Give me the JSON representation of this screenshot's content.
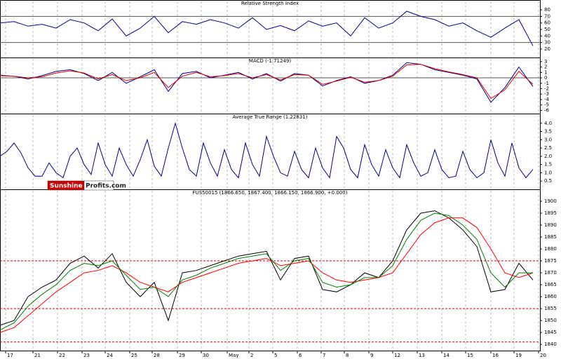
{
  "chart_data": [
    {
      "type": "line",
      "title": "Relative Strength Index",
      "x": [
        0,
        2,
        4,
        6,
        8,
        10,
        12,
        14,
        16,
        18,
        20,
        22,
        24,
        26,
        28,
        30,
        32,
        34,
        36,
        38,
        40,
        42,
        44,
        46,
        48,
        50,
        52,
        54,
        56,
        58,
        60,
        62,
        64,
        66,
        68,
        70,
        72,
        74,
        76
      ],
      "series": [
        {
          "color": "#00008b",
          "values": [
            60,
            62,
            55,
            58,
            52,
            65,
            60,
            48,
            66,
            40,
            52,
            70,
            45,
            62,
            58,
            65,
            60,
            52,
            68,
            50,
            56,
            48,
            63,
            55,
            60,
            40,
            68,
            52,
            60,
            78,
            70,
            65,
            55,
            60,
            48,
            38,
            52,
            65,
            25
          ]
        }
      ],
      "ylim": [
        7,
        93
      ],
      "yticks": [
        20,
        30,
        40,
        50,
        60,
        70,
        80
      ],
      "reference_lines": [
        70,
        30
      ],
      "reference_color": "#555555",
      "reference_dashed": false
    },
    {
      "type": "line",
      "title": "MACD (-1.71249)",
      "x": [
        0,
        2,
        4,
        6,
        8,
        10,
        12,
        14,
        16,
        18,
        20,
        22,
        24,
        26,
        28,
        30,
        32,
        34,
        36,
        38,
        40,
        42,
        44,
        46,
        48,
        50,
        52,
        54,
        56,
        58,
        60,
        62,
        64,
        66,
        68,
        70,
        72,
        74,
        76
      ],
      "series": [
        {
          "color": "#00008b",
          "values": [
            0.5,
            0.3,
            -0.2,
            0.4,
            1.2,
            1.5,
            0.8,
            -0.5,
            1,
            -1,
            0.2,
            1.5,
            -2.5,
            0.8,
            1.2,
            0,
            0.5,
            1,
            -0.2,
            0.8,
            -0.6,
            0.8,
            0.5,
            -1.5,
            -0.5,
            0.2,
            -1,
            -0.5,
            0.5,
            2.8,
            2.5,
            1.5,
            1,
            0.5,
            -0.2,
            -4.5,
            -1.8,
            2,
            -1.6
          ]
        },
        {
          "color": "#dd0000",
          "values": [
            0.4,
            0.3,
            0,
            0.2,
            0.9,
            1.3,
            0.9,
            -0.2,
            0.6,
            -0.5,
            0,
            1,
            -1.8,
            0.3,
            1,
            0.2,
            0.4,
            0.8,
            0,
            0.6,
            -0.4,
            0.6,
            0.5,
            -1.2,
            -0.6,
            0.1,
            -0.8,
            -0.5,
            0.3,
            2.4,
            2.5,
            1.7,
            1.1,
            0.6,
            0,
            -3.8,
            -2.2,
            1.2,
            -1.2
          ]
        }
      ],
      "ylim": [
        -6.6,
        3.5
      ],
      "yticks": [
        3,
        2,
        1,
        0,
        -1,
        -2,
        -3,
        -4,
        -5,
        -6
      ],
      "reference_lines": [
        0
      ],
      "reference_color": "#555555",
      "reference_dashed": false
    },
    {
      "type": "line",
      "title": "Average True Range (1.22831)",
      "x": [
        0,
        1,
        2,
        3,
        4,
        5,
        6,
        7,
        8,
        9,
        10,
        11,
        12,
        13,
        14,
        15,
        16,
        17,
        18,
        19,
        20,
        21,
        22,
        23,
        24,
        25,
        26,
        27,
        28,
        29,
        30,
        31,
        32,
        33,
        34,
        35,
        36,
        37,
        38,
        39,
        40,
        41,
        42,
        43,
        44,
        45,
        46,
        47,
        48,
        49,
        50,
        51,
        52,
        53,
        54,
        55,
        56,
        57,
        58,
        59,
        60,
        61,
        62,
        63,
        64,
        65,
        66,
        67,
        68,
        69,
        70,
        71,
        72,
        73,
        74,
        75,
        76
      ],
      "series": [
        {
          "color": "#00008b",
          "values": [
            2.0,
            2.3,
            2.8,
            2.2,
            1.3,
            0.8,
            0.8,
            1.6,
            1.0,
            0.7,
            2.0,
            2.5,
            1.5,
            0.9,
            2.8,
            1.5,
            0.8,
            2.5,
            1.5,
            0.8,
            1.8,
            3.0,
            1.4,
            0.8,
            2.5,
            4.0,
            2.5,
            1.2,
            0.8,
            2.8,
            1.6,
            0.8,
            2.4,
            1.2,
            0.7,
            2.8,
            1.5,
            0.8,
            3.2,
            2.0,
            1.0,
            0.8,
            2.3,
            1.2,
            0.7,
            2.5,
            1.3,
            0.7,
            3.2,
            2.5,
            1.2,
            0.7,
            2.7,
            1.5,
            0.8,
            2.4,
            1.3,
            0.7,
            2.7,
            1.6,
            0.8,
            1.0,
            2.4,
            1.2,
            0.7,
            0.8,
            2.3,
            1.2,
            0.7,
            1.0,
            3.0,
            1.6,
            0.8,
            2.8,
            1.3,
            0.7,
            1.2
          ]
        }
      ],
      "ylim": [
        0,
        4.5
      ],
      "yticks": [
        {
          "value": 4,
          "label": "4.0"
        },
        3.5,
        {
          "value": 3,
          "label": "3.0"
        },
        2.5,
        {
          "value": 2,
          "label": "2.0"
        },
        1.5,
        {
          "value": 1,
          "label": "1.0"
        },
        0.5
      ]
    },
    {
      "type": "line",
      "title": "FUS50015 (1866.650, 1867.400, 1866.150, 1866.900, +0.000)",
      "watermark": [
        "Sunshine",
        "Profits.com"
      ],
      "x": [
        0,
        2,
        4,
        6,
        8,
        10,
        12,
        14,
        16,
        18,
        20,
        22,
        24,
        26,
        28,
        30,
        32,
        34,
        36,
        38,
        40,
        42,
        44,
        46,
        48,
        50,
        52,
        54,
        56,
        58,
        60,
        62,
        64,
        66,
        68,
        70,
        72,
        74,
        76
      ],
      "series": [
        {
          "color": "#000000",
          "values": [
            1848,
            1850,
            1860,
            1864,
            1867,
            1874,
            1877,
            1872,
            1878,
            1866,
            1860,
            1866,
            1850,
            1870,
            1871,
            1873,
            1875,
            1877,
            1878,
            1879,
            1867,
            1876,
            1877,
            1863,
            1862,
            1865,
            1870,
            1868,
            1875,
            1888,
            1895,
            1896,
            1893,
            1888,
            1881,
            1862,
            1863,
            1874,
            1867
          ]
        },
        {
          "color": "#ff0000",
          "values": [
            1845,
            1847,
            1852,
            1857,
            1862,
            1866,
            1870,
            1871,
            1873,
            1870,
            1866,
            1864,
            1862,
            1866,
            1868,
            1870,
            1872,
            1874,
            1875,
            1876,
            1873,
            1874,
            1875,
            1870,
            1867,
            1866,
            1867,
            1868,
            1870,
            1878,
            1886,
            1891,
            1893,
            1893,
            1889,
            1880,
            1870,
            1868,
            1870
          ]
        },
        {
          "color": "#008000",
          "values": [
            1846,
            1849,
            1856,
            1861,
            1865,
            1871,
            1874,
            1873,
            1875,
            1869,
            1863,
            1864,
            1860,
            1867,
            1869,
            1872,
            1874,
            1876,
            1877,
            1878,
            1871,
            1875,
            1876,
            1866,
            1864,
            1865,
            1868,
            1868,
            1873,
            1884,
            1892,
            1895,
            1894,
            1890,
            1884,
            1870,
            1864,
            1870,
            1870
          ]
        }
      ],
      "ylim": [
        1837.4,
        1904.4
      ],
      "yticks": [
        1840,
        1845,
        1850,
        1855,
        1860,
        1865,
        1870,
        1875,
        1880,
        1885,
        1890,
        1895,
        1900
      ],
      "reference_lines": [
        1875,
        1855,
        1841
      ],
      "reference_color": "#cc0000",
      "reference_dashed": true,
      "xlim": [
        0,
        77
      ],
      "xticks": [
        {
          "value": 0.8,
          "label": "17"
        },
        {
          "value": 4.7,
          "label": "21"
        },
        {
          "value": 8.2,
          "label": "22"
        },
        {
          "value": 11.7,
          "label": "23"
        },
        {
          "value": 15,
          "label": "24"
        },
        {
          "value": 18.5,
          "label": "25"
        },
        {
          "value": 21.7,
          "label": "28"
        },
        {
          "value": 25.3,
          "label": "29"
        },
        {
          "value": 28.7,
          "label": "30"
        },
        {
          "value": 32.4,
          "label": "May"
        },
        {
          "value": 35.5,
          "label": "2"
        },
        {
          "value": 38.9,
          "label": "5"
        },
        {
          "value": 42.4,
          "label": "6"
        },
        {
          "value": 45.8,
          "label": "7"
        },
        {
          "value": 49.1,
          "label": "8"
        },
        {
          "value": 52.6,
          "label": "9"
        },
        {
          "value": 56,
          "label": "12"
        },
        {
          "value": 59.5,
          "label": "13"
        },
        {
          "value": 63,
          "label": "14"
        },
        {
          "value": 66.4,
          "label": "15"
        },
        {
          "value": 70,
          "label": "16"
        },
        {
          "value": 73.3,
          "label": "19"
        },
        {
          "value": 76.8,
          "label": "20"
        }
      ]
    }
  ]
}
